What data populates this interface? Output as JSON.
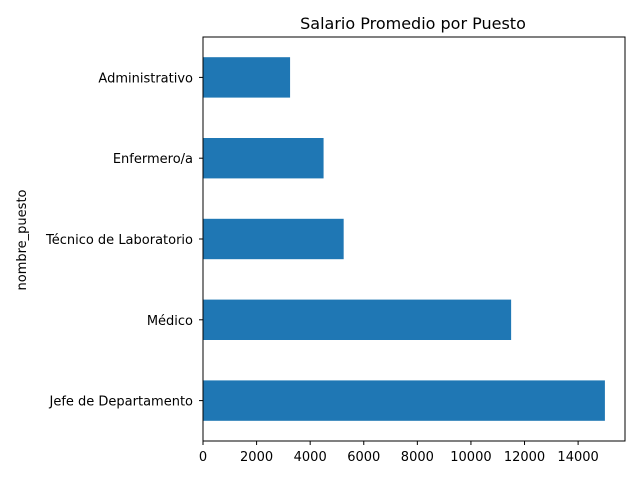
{
  "chart_data": {
    "type": "bar",
    "orientation": "horizontal",
    "title": "Salario Promedio por Puesto",
    "xlabel": "",
    "ylabel": "nombre_puesto",
    "categories": [
      "Jefe de Departamento",
      "Médico",
      "Técnico de Laboratorio",
      "Enfermero/a",
      "Administrativo"
    ],
    "values": [
      15000,
      11500,
      5250,
      4500,
      3250
    ],
    "xlim": [
      0,
      15750
    ],
    "xticks": [
      0,
      2000,
      4000,
      6000,
      8000,
      10000,
      12000,
      14000
    ],
    "grid": false,
    "legend": "none",
    "bar_color": "#1f77b4"
  }
}
